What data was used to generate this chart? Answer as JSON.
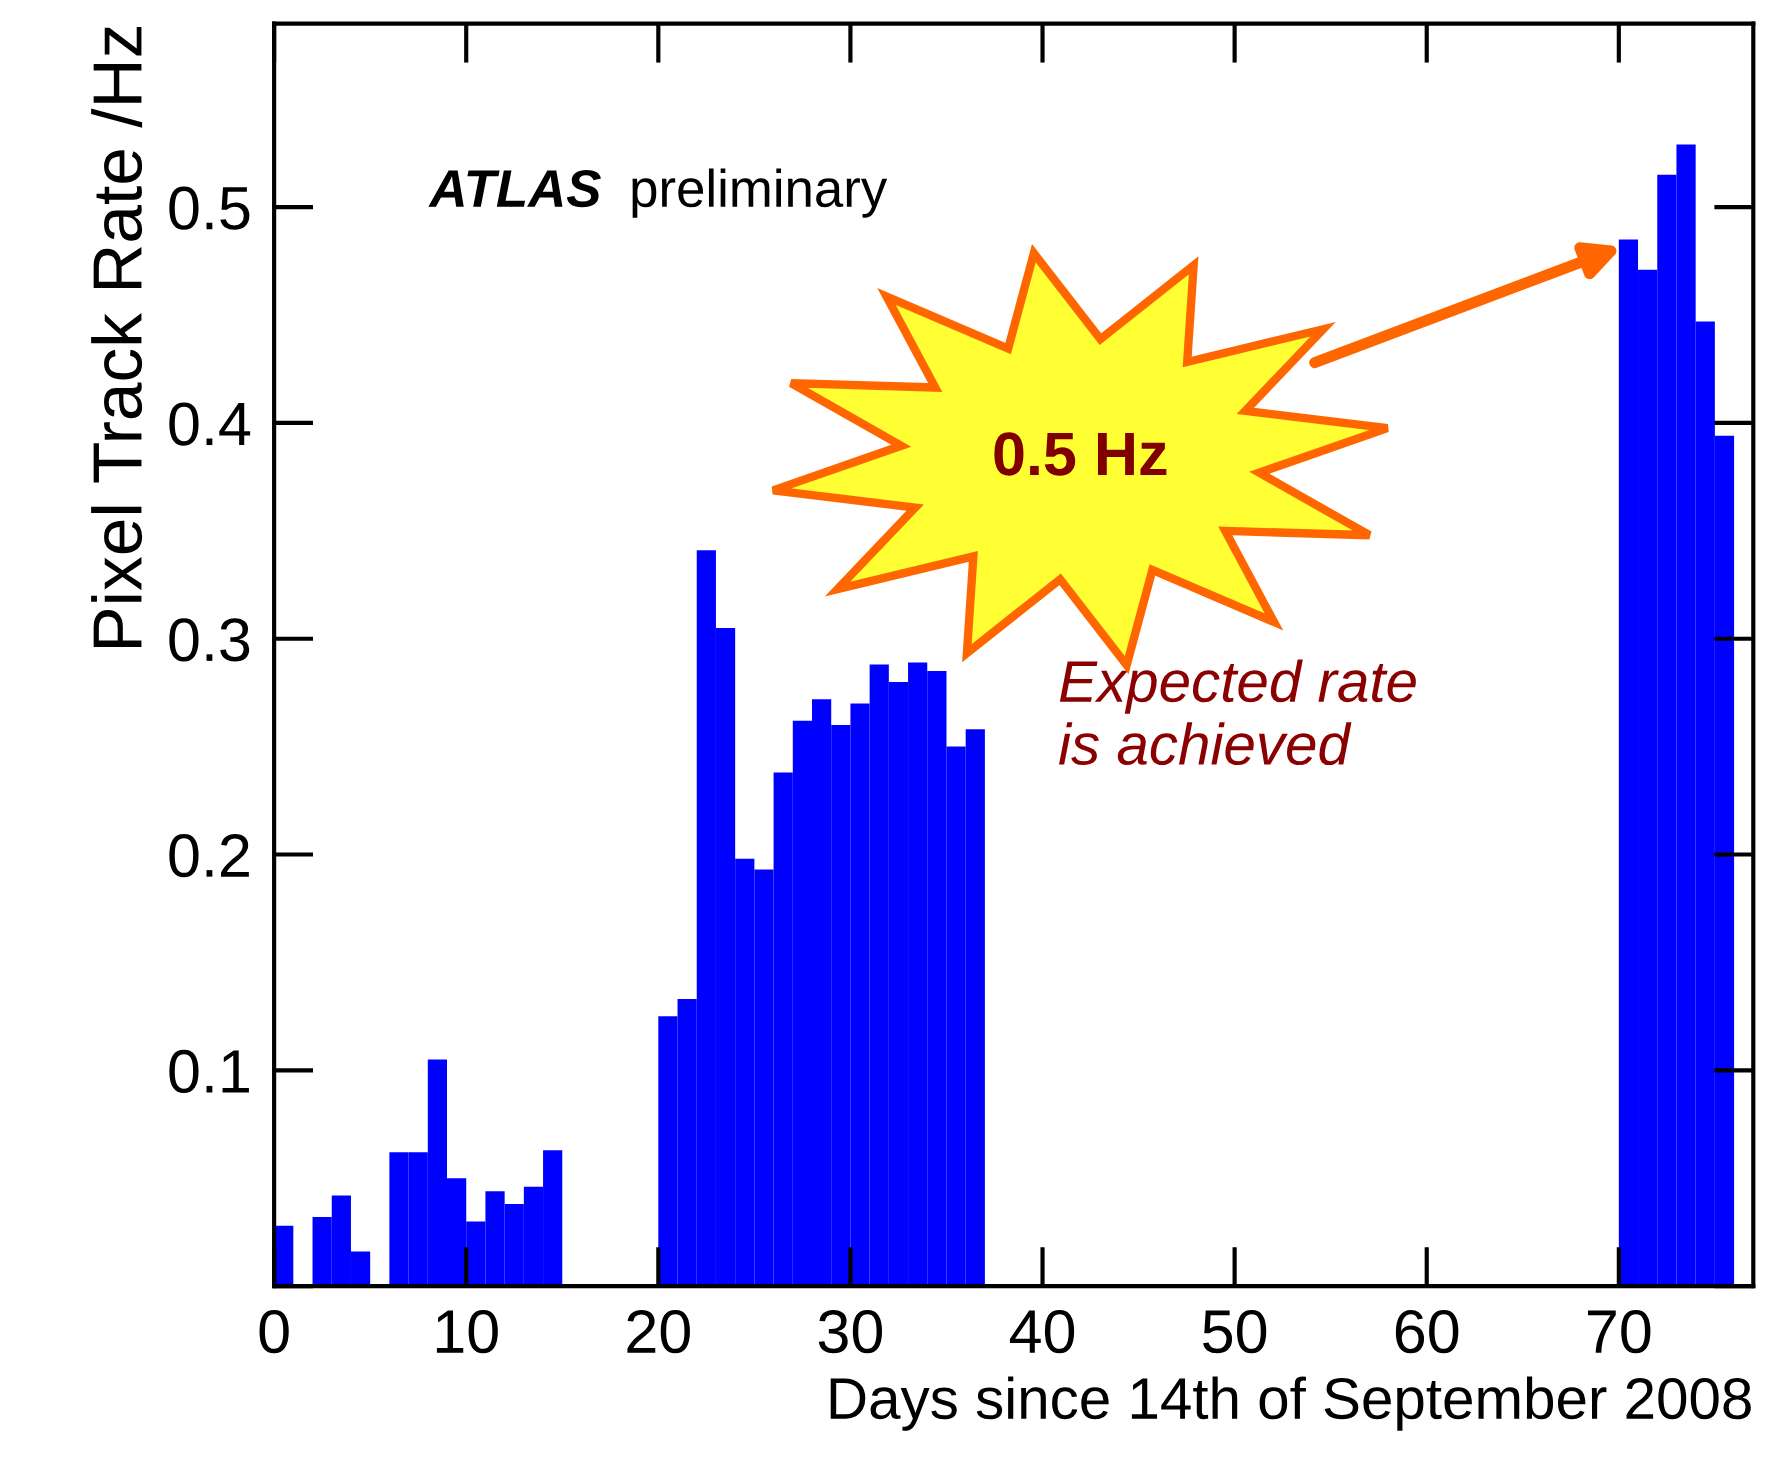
{
  "chart_data": {
    "type": "histogram",
    "xlabel": "Days since 14th of September 2008",
    "ylabel": "Pixel Track Rate /Hz",
    "bins": [
      0,
      1,
      2,
      3,
      4,
      5,
      6,
      7,
      8,
      9,
      10,
      11,
      12,
      13,
      14,
      15,
      16,
      17,
      18,
      19,
      20,
      21,
      22,
      23,
      24,
      25,
      26,
      27,
      28,
      29,
      30,
      31,
      32,
      33,
      34,
      35,
      36,
      37,
      38,
      39,
      40,
      41,
      42,
      43,
      44,
      45,
      46,
      47,
      48,
      49,
      50,
      51,
      52,
      53,
      54,
      55,
      56,
      57,
      58,
      59,
      60,
      61,
      62,
      63,
      64,
      65,
      66,
      67,
      68,
      69,
      70,
      71,
      72,
      73,
      74,
      75,
      76
    ],
    "values": [
      0.028,
      0,
      0.032,
      0.042,
      0.016,
      0,
      0.062,
      0.062,
      0.105,
      0.05,
      0.03,
      0.044,
      0.038,
      0.046,
      0.063,
      0,
      0,
      0,
      0,
      0,
      0.125,
      0.133,
      0.341,
      0.305,
      0.198,
      0.193,
      0.238,
      0.262,
      0.272,
      0.26,
      0.27,
      0.288,
      0.28,
      0.289,
      0.285,
      0.25,
      0.258,
      0,
      0,
      0,
      0,
      0,
      0,
      0,
      0,
      0,
      0,
      0,
      0,
      0,
      0,
      0,
      0,
      0,
      0,
      0,
      0,
      0,
      0,
      0,
      0,
      0,
      0,
      0,
      0,
      0,
      0,
      0,
      0,
      0,
      0.485,
      0.471,
      0.515,
      0.529,
      0.447,
      0.394
    ],
    "color": "#0000ff",
    "xlim": [
      0,
      77
    ],
    "ylim": [
      0,
      0.585
    ],
    "xticks": [
      0,
      10,
      20,
      30,
      40,
      50,
      60,
      70
    ],
    "yticks": [
      {
        "value": 0,
        "label": null
      },
      0.1,
      0.2,
      0.3,
      0.4,
      0.5
    ],
    "grid": false,
    "legend": false,
    "annotations": [
      "ATLAS",
      "preliminary",
      "0.5 Hz",
      "Expected rate\nis achieved"
    ]
  }
}
